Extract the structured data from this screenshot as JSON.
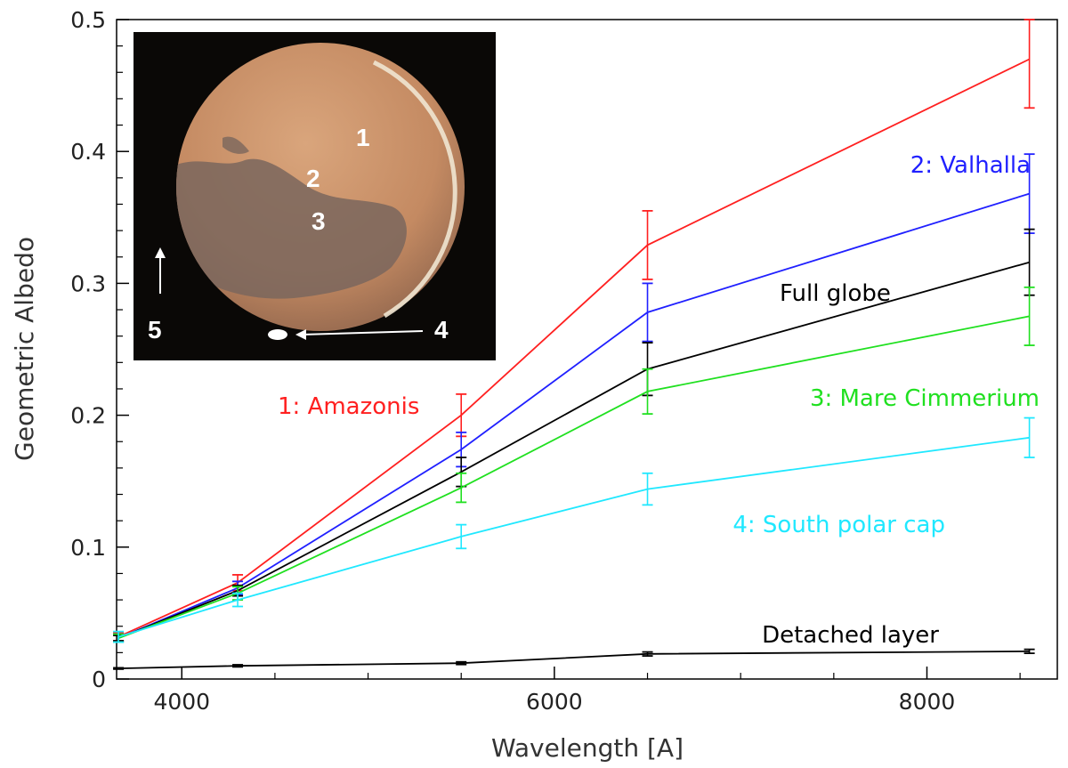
{
  "chart_data": {
    "type": "line",
    "xlabel": "Wavelength [A]",
    "ylabel": "Geometric Albedo",
    "xlim": [
      3650,
      8700
    ],
    "ylim": [
      0,
      0.5
    ],
    "x_ticks": [
      4000,
      6000,
      8000
    ],
    "y_ticks": [
      0,
      0.1,
      0.2,
      0.3,
      0.4,
      0.5
    ],
    "x_tick_labels": [
      "4000",
      "6000",
      "8000"
    ],
    "y_tick_labels": [
      "0",
      "0.1",
      "0.2",
      "0.3",
      "0.4",
      "0.5"
    ],
    "grid": false,
    "series": [
      {
        "name": "1: Amazonis",
        "color": "#ff2020",
        "x": [
          3660,
          4300,
          5500,
          6500,
          8550
        ],
        "y": [
          0.032,
          0.073,
          0.2,
          0.329,
          0.47
        ],
        "err": [
          0.003,
          0.006,
          0.016,
          0.026,
          0.037
        ]
      },
      {
        "name": "2: Valhalla",
        "color": "#2020ff",
        "x": [
          3660,
          4300,
          5500,
          6500,
          8550
        ],
        "y": [
          0.031,
          0.069,
          0.174,
          0.278,
          0.368
        ],
        "err": [
          0.003,
          0.005,
          0.013,
          0.022,
          0.03
        ]
      },
      {
        "name": "Full globe",
        "color": "#000000",
        "x": [
          3660,
          4300,
          5500,
          6500,
          8550
        ],
        "y": [
          0.031,
          0.067,
          0.157,
          0.235,
          0.316
        ],
        "err": [
          0.002,
          0.004,
          0.011,
          0.02,
          0.025
        ]
      },
      {
        "name": "3: Mare Cimmerium",
        "color": "#20e020",
        "x": [
          3660,
          4300,
          5500,
          6500,
          8550
        ],
        "y": [
          0.031,
          0.065,
          0.145,
          0.218,
          0.275
        ],
        "err": [
          0.003,
          0.005,
          0.011,
          0.017,
          0.022
        ]
      },
      {
        "name": "4: South polar cap",
        "color": "#20e8ff",
        "x": [
          3660,
          4300,
          5500,
          6500,
          8550
        ],
        "y": [
          0.032,
          0.06,
          0.108,
          0.144,
          0.183
        ],
        "err": [
          0.004,
          0.005,
          0.009,
          0.012,
          0.015
        ]
      },
      {
        "name": "Detached layer",
        "color": "#000000",
        "x": [
          3660,
          4300,
          5500,
          6500,
          8550
        ],
        "y": [
          0.008,
          0.01,
          0.012,
          0.019,
          0.021
        ],
        "err": [
          0.0005,
          0.0008,
          0.001,
          0.0015,
          0.0015
        ]
      }
    ],
    "inset": {
      "labels": [
        "1",
        "2",
        "3",
        "4",
        "5"
      ],
      "colors": {
        "background": "#0a0806",
        "disk": "#c9906a",
        "dark": "#6e5a54",
        "rim": "#e8dcc8"
      }
    }
  }
}
